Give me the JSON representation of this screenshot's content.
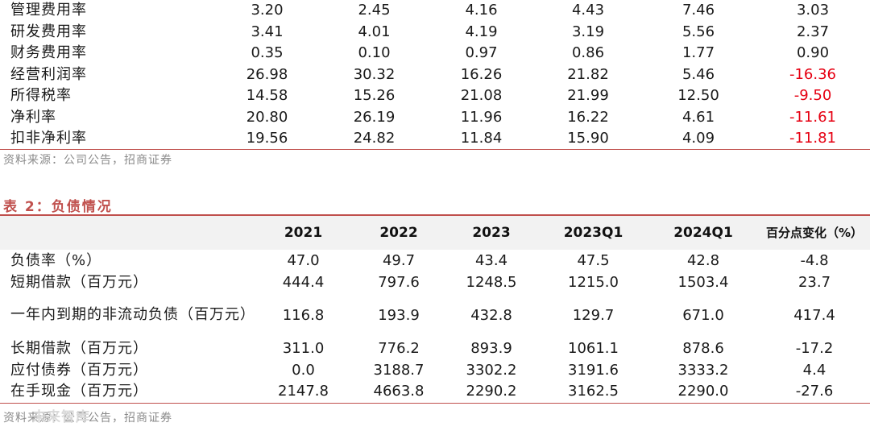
{
  "table1": {
    "rows": [
      {
        "label": "管理费用率",
        "values": [
          "3.20",
          "2.45",
          "4.16",
          "4.43",
          "7.46",
          "3.03"
        ]
      },
      {
        "label": "研发费用率",
        "values": [
          "3.41",
          "4.01",
          "4.19",
          "3.19",
          "5.56",
          "2.37"
        ]
      },
      {
        "label": "财务费用率",
        "values": [
          "0.35",
          "0.10",
          "0.97",
          "0.86",
          "1.77",
          "0.90"
        ]
      },
      {
        "label": "经营利润率",
        "values": [
          "26.98",
          "30.32",
          "16.26",
          "21.82",
          "5.46",
          "-16.36"
        ]
      },
      {
        "label": "所得税率",
        "values": [
          "14.58",
          "15.26",
          "21.08",
          "21.99",
          "12.50",
          "-9.50"
        ]
      },
      {
        "label": "净利率",
        "values": [
          "20.80",
          "26.19",
          "11.96",
          "16.22",
          "4.61",
          "-11.61"
        ]
      },
      {
        "label": "扣非净利率",
        "values": [
          "19.56",
          "24.82",
          "11.84",
          "15.90",
          "4.09",
          "-11.81"
        ]
      }
    ],
    "source": "资料来源：公司公告，招商证券"
  },
  "table2": {
    "caption": "表 2：负债情况",
    "headers": [
      "",
      "2021",
      "2022",
      "2023",
      "2023Q1",
      "2024Q1",
      "百分点变化（%）"
    ],
    "rows": [
      {
        "label": "负债率（%）",
        "values": [
          "47.0",
          "49.7",
          "43.4",
          "47.5",
          "42.8",
          "-4.8"
        ]
      },
      {
        "label": "短期借款（百万元）",
        "values": [
          "444.4",
          "797.6",
          "1248.5",
          "1215.0",
          "1503.4",
          "23.7"
        ]
      },
      {
        "label": "一年内到期的非流动负债（百万元）",
        "values": [
          "116.8",
          "193.9",
          "432.8",
          "129.7",
          "671.0",
          "417.4"
        ]
      },
      {
        "label": "长期借款（百万元）",
        "values": [
          "311.0",
          "776.2",
          "893.9",
          "1061.1",
          "878.6",
          "-17.2"
        ]
      },
      {
        "label": "应付债券（百万元）",
        "values": [
          "0.0",
          "3188.7",
          "3302.2",
          "3191.6",
          "3333.2",
          "4.4"
        ]
      },
      {
        "label": "在手现金（百万元）",
        "values": [
          "2147.8",
          "4663.8",
          "2290.2",
          "3162.5",
          "2290.0",
          "-27.6"
        ]
      }
    ],
    "source": "资料来源：公司公告，招商证券"
  },
  "watermark": "未来智库"
}
